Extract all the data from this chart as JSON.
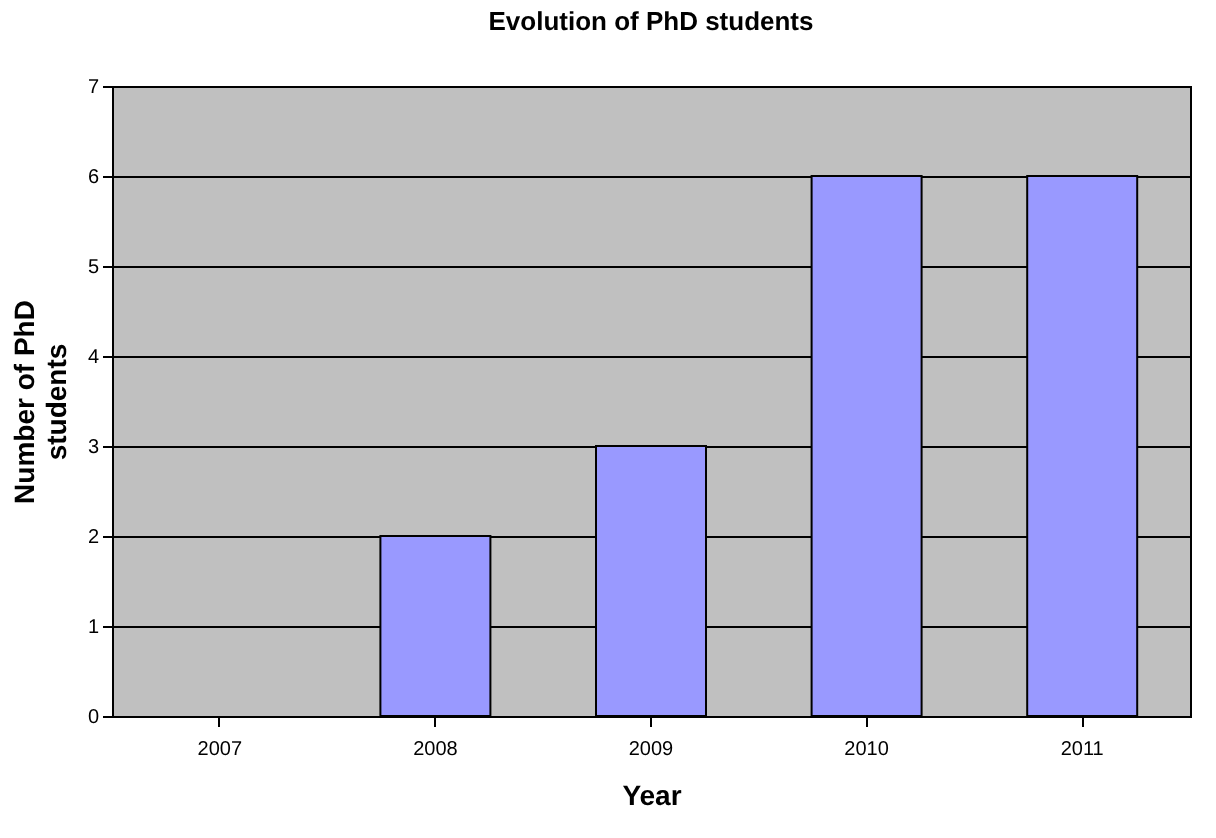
{
  "chart_data": {
    "type": "bar",
    "title": "Evolution of PhD students",
    "xlabel": "Year",
    "ylabel": "Number of PhD students",
    "categories": [
      "2007",
      "2008",
      "2009",
      "2010",
      "2011"
    ],
    "values": [
      0,
      2,
      3,
      6,
      6
    ],
    "color": "#9999ff",
    "ylim": [
      0,
      7
    ],
    "yticks": [
      0,
      1,
      2,
      3,
      4,
      5,
      6,
      7
    ],
    "grid": "y"
  }
}
